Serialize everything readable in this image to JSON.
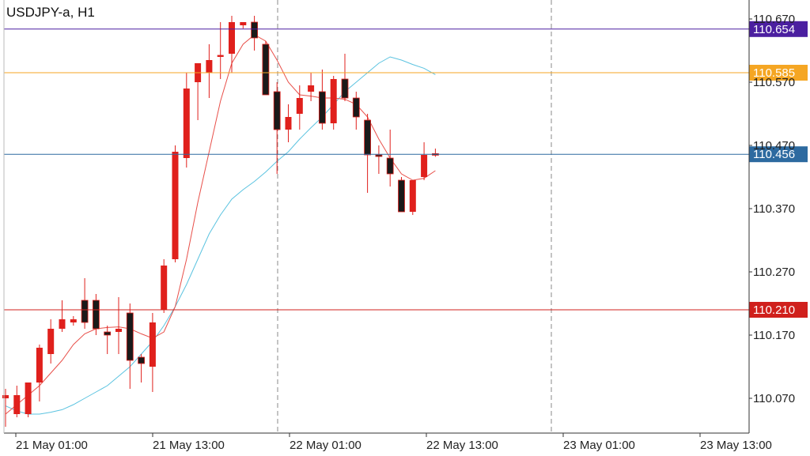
{
  "symbol_title": "USDJPY-a, H1",
  "colors": {
    "bull": "#e0201c",
    "bear": "#1a1a1a",
    "ma_fast": "#e8504a",
    "ma_slow": "#5bc3e0",
    "grid_vline": "#888888",
    "axis": "#333333"
  },
  "chart_data": {
    "type": "candlestick",
    "title": "USDJPY-a, H1",
    "timeframe": "H1",
    "ylim": [
      110.015,
      110.7
    ],
    "y_ticks": [
      "110.670",
      "110.570",
      "110.470",
      "110.370",
      "110.270",
      "110.170",
      "110.070"
    ],
    "x_ticks": [
      "21 May 01:00",
      "21 May 13:00",
      "22 May 01:00",
      "22 May 13:00",
      "23 May 01:00",
      "23 May 13:00"
    ],
    "grid": "vertical dashed day separators",
    "price_lines": [
      {
        "label": "110.654",
        "value": 110.654,
        "color": "#4b1fa0"
      },
      {
        "label": "110.585",
        "value": 110.585,
        "color": "#f5a623"
      },
      {
        "label": "110.456",
        "value": 110.456,
        "color": "#2d6aa0"
      },
      {
        "label": "110.210",
        "value": 110.21,
        "color": "#d0201c"
      }
    ],
    "candles": [
      {
        "o": 110.07,
        "h": 110.085,
        "l": 110.025,
        "c": 110.075
      },
      {
        "o": 110.045,
        "h": 110.09,
        "l": 110.04,
        "c": 110.075
      },
      {
        "o": 110.045,
        "h": 110.09,
        "l": 110.04,
        "c": 110.095
      },
      {
        "o": 110.095,
        "h": 110.155,
        "l": 110.065,
        "c": 110.15
      },
      {
        "o": 110.14,
        "h": 110.195,
        "l": 110.125,
        "c": 110.18
      },
      {
        "o": 110.18,
        "h": 110.225,
        "l": 110.175,
        "c": 110.195
      },
      {
        "o": 110.19,
        "h": 110.2,
        "l": 110.185,
        "c": 110.195
      },
      {
        "o": 110.225,
        "h": 110.26,
        "l": 110.18,
        "c": 110.19
      },
      {
        "o": 110.225,
        "h": 110.235,
        "l": 110.17,
        "c": 110.18
      },
      {
        "o": 110.175,
        "h": 110.185,
        "l": 110.14,
        "c": 110.17
      },
      {
        "o": 110.175,
        "h": 110.23,
        "l": 110.14,
        "c": 110.18
      },
      {
        "o": 110.205,
        "h": 110.22,
        "l": 110.085,
        "c": 110.13
      },
      {
        "o": 110.135,
        "h": 110.14,
        "l": 110.095,
        "c": 110.125
      },
      {
        "o": 110.12,
        "h": 110.205,
        "l": 110.08,
        "c": 110.19
      },
      {
        "o": 110.21,
        "h": 110.29,
        "l": 110.205,
        "c": 110.28
      },
      {
        "o": 110.29,
        "h": 110.47,
        "l": 110.285,
        "c": 110.46
      },
      {
        "o": 110.45,
        "h": 110.585,
        "l": 110.435,
        "c": 110.56
      },
      {
        "o": 110.57,
        "h": 110.6,
        "l": 110.51,
        "c": 110.6
      },
      {
        "o": 110.585,
        "h": 110.63,
        "l": 110.545,
        "c": 110.605
      },
      {
        "o": 110.61,
        "h": 110.665,
        "l": 110.575,
        "c": 110.613
      },
      {
        "o": 110.615,
        "h": 110.675,
        "l": 110.585,
        "c": 110.665
      },
      {
        "o": 110.66,
        "h": 110.665,
        "l": 110.655,
        "c": 110.665
      },
      {
        "o": 110.665,
        "h": 110.675,
        "l": 110.62,
        "c": 110.64
      },
      {
        "o": 110.63,
        "h": 110.635,
        "l": 110.55,
        "c": 110.55
      },
      {
        "o": 110.555,
        "h": 110.57,
        "l": 110.425,
        "c": 110.495
      },
      {
        "o": 110.495,
        "h": 110.535,
        "l": 110.475,
        "c": 110.515
      },
      {
        "o": 110.52,
        "h": 110.565,
        "l": 110.495,
        "c": 110.545
      },
      {
        "o": 110.555,
        "h": 110.585,
        "l": 110.54,
        "c": 110.565
      },
      {
        "o": 110.555,
        "h": 110.59,
        "l": 110.495,
        "c": 110.505
      },
      {
        "o": 110.505,
        "h": 110.58,
        "l": 110.495,
        "c": 110.575
      },
      {
        "o": 110.575,
        "h": 110.615,
        "l": 110.54,
        "c": 110.545
      },
      {
        "o": 110.545,
        "h": 110.555,
        "l": 110.495,
        "c": 110.515
      },
      {
        "o": 110.51,
        "h": 110.52,
        "l": 110.395,
        "c": 110.455
      },
      {
        "o": 110.455,
        "h": 110.47,
        "l": 110.425,
        "c": 110.453
      },
      {
        "o": 110.45,
        "h": 110.495,
        "l": 110.405,
        "c": 110.425
      },
      {
        "o": 110.415,
        "h": 110.42,
        "l": 110.365,
        "c": 110.365
      },
      {
        "o": 110.365,
        "h": 110.415,
        "l": 110.36,
        "c": 110.415
      },
      {
        "o": 110.42,
        "h": 110.475,
        "l": 110.415,
        "c": 110.455
      },
      {
        "o": 110.457,
        "h": 110.465,
        "l": 110.452,
        "c": 110.456
      }
    ],
    "ma_fast": [
      110.045,
      110.06,
      110.075,
      110.09,
      110.11,
      110.13,
      110.155,
      110.172,
      110.18,
      110.182,
      110.183,
      110.18,
      110.172,
      110.165,
      110.175,
      110.215,
      110.29,
      110.38,
      110.46,
      110.54,
      110.6,
      110.63,
      110.645,
      110.635,
      110.605,
      110.57,
      110.55,
      110.548,
      110.545,
      110.545,
      110.543,
      110.535,
      110.515,
      110.48,
      110.45,
      110.425,
      110.415,
      110.418,
      110.43
    ],
    "ma_slow": [
      110.058,
      110.05,
      110.045,
      110.045,
      110.048,
      110.052,
      110.06,
      110.07,
      110.08,
      110.09,
      110.105,
      110.12,
      110.14,
      110.16,
      110.185,
      110.215,
      110.25,
      110.29,
      110.33,
      110.36,
      110.385,
      110.4,
      110.413,
      110.428,
      110.445,
      110.46,
      110.48,
      110.498,
      110.515,
      110.535,
      110.555,
      110.57,
      110.585,
      110.6,
      110.61,
      110.605,
      110.598,
      110.592,
      110.582
    ]
  }
}
